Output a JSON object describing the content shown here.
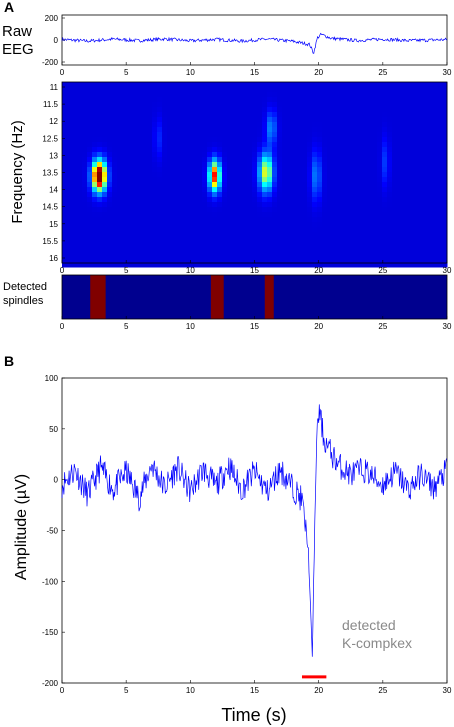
{
  "chart_data": [
    {
      "panel": "A",
      "type": "line",
      "ylabel": "Raw EEG",
      "xlim": [
        0,
        30
      ],
      "ylim": [
        -200,
        200
      ],
      "xticks": [
        0,
        5,
        10,
        15,
        20,
        25,
        30
      ],
      "yticks": [
        200,
        0,
        -200
      ],
      "series": [
        {
          "x": [
            0,
            2,
            4,
            6,
            8,
            10,
            12,
            14,
            16,
            18,
            19.3,
            19.6,
            19.9,
            20.2,
            21,
            23,
            25,
            27,
            30
          ],
          "y": [
            5,
            -10,
            8,
            -6,
            10,
            -8,
            6,
            -10,
            8,
            -12,
            -40,
            -120,
            20,
            50,
            15,
            -5,
            8,
            -6,
            4
          ]
        }
      ]
    },
    {
      "panel": "A",
      "type": "heatmap",
      "ylabel": "Frequency (Hz)",
      "xlim": [
        0,
        30
      ],
      "yticks": [
        11,
        11.5,
        12,
        12.5,
        13,
        13.5,
        14,
        14.5,
        15,
        15.5,
        16
      ],
      "xticks": [
        0,
        5,
        10,
        15,
        20,
        25,
        30
      ],
      "colors": [
        "#00008f",
        "#0000ff",
        "#00ffff",
        "#ffff00",
        "#ff0000",
        "#800000"
      ],
      "blobs": [
        {
          "t": 2.9,
          "f": 13.6,
          "dt": 0.55,
          "df": 0.45,
          "peak": 1.0
        },
        {
          "t": 11.9,
          "f": 13.6,
          "dt": 0.45,
          "df": 0.45,
          "peak": 0.75
        },
        {
          "t": 15.9,
          "f": 13.5,
          "dt": 0.55,
          "df": 0.55,
          "peak": 0.55
        },
        {
          "t": 16.3,
          "f": 12.2,
          "dt": 0.4,
          "df": 0.5,
          "peak": 0.22
        },
        {
          "t": 19.8,
          "f": 13.6,
          "dt": 0.4,
          "df": 0.7,
          "peak": 0.2
        },
        {
          "t": 25.2,
          "f": 13.2,
          "dt": 0.3,
          "df": 0.7,
          "peak": 0.12
        },
        {
          "t": 7.5,
          "f": 12.5,
          "dt": 0.3,
          "df": 0.6,
          "peak": 0.1
        }
      ]
    },
    {
      "panel": "A",
      "type": "bar",
      "ylabel": "Detected spindles",
      "xlim": [
        0,
        30
      ],
      "xticks": [
        0,
        5,
        10,
        15,
        20,
        25,
        30
      ],
      "background": "#00008f",
      "color": "#800000",
      "intervals": [
        [
          2.2,
          3.4
        ],
        [
          11.6,
          12.6
        ],
        [
          15.8,
          16.5
        ]
      ]
    },
    {
      "panel": "B",
      "type": "line",
      "xlabel": "Time (s)",
      "ylabel": "Amplitude (µV)",
      "xlim": [
        0,
        30
      ],
      "ylim": [
        -200,
        100
      ],
      "xticks": [
        0,
        5,
        10,
        15,
        20,
        25,
        30
      ],
      "yticks": [
        100,
        50,
        0,
        -50,
        -100,
        -150,
        -200
      ],
      "annotation": [
        "detected",
        "K-compkex"
      ],
      "marker_interval": [
        18.7,
        20.6
      ],
      "marker_y": -194,
      "series": [
        {
          "x": [
            0,
            1,
            2,
            3,
            4,
            5,
            6,
            7,
            8,
            9,
            10,
            11,
            12,
            13,
            14,
            15,
            16,
            17,
            18,
            18.7,
            19.2,
            19.5,
            19.7,
            19.9,
            20.1,
            20.4,
            20.8,
            21.5,
            22.5,
            23.5,
            25,
            26,
            27,
            28,
            29,
            30
          ],
          "y": [
            -5,
            10,
            -15,
            12,
            -10,
            8,
            -18,
            15,
            -8,
            12,
            -12,
            10,
            -6,
            14,
            -10,
            8,
            -12,
            10,
            -8,
            -20,
            -70,
            -175,
            -40,
            60,
            65,
            40,
            30,
            15,
            5,
            10,
            -5,
            8,
            -10,
            5,
            -8,
            10
          ]
        }
      ]
    }
  ],
  "labels": {
    "panel_a": "A",
    "panel_b": "B",
    "raw_eeg_line1": "Raw",
    "raw_eeg_line2": "EEG",
    "frequency": "Frequency (Hz)",
    "spindles_line1": "Detected",
    "spindles_line2": "spindles",
    "amplitude": "Amplitude (µV)",
    "time": "Time (s)",
    "ann_line1": "detected",
    "ann_line2": "K-compkex"
  },
  "colors": {
    "trace": "#0000ff",
    "marker": "#ff0000",
    "annotation": "#8a8a8a"
  }
}
